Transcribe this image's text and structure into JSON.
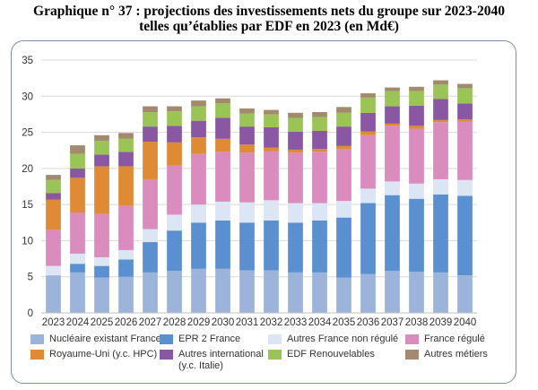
{
  "header": {
    "title_line1": "Graphique n° 37 : projections des investissements nets du groupe sur 2023-2040",
    "title_line2": "telles qu’établies par EDF en 2023 (en Md€)"
  },
  "chart_data": {
    "type": "bar",
    "stacked": true,
    "categories": [
      "2023",
      "2024",
      "2025",
      "2026",
      "2027",
      "2028",
      "2029",
      "2030",
      "2031",
      "2032",
      "2033",
      "2034",
      "2035",
      "2036",
      "2037",
      "2038",
      "2039",
      "2040"
    ],
    "ylim": [
      0,
      35
    ],
    "yticks": [
      0,
      5,
      10,
      15,
      20,
      25,
      30,
      35
    ],
    "grid": true,
    "legend_position": "bottom",
    "series": [
      {
        "name": "Nucléaire existant France",
        "color": "#9db4da",
        "values": [
          5.2,
          5.6,
          4.9,
          5.0,
          5.6,
          5.8,
          6.1,
          6.1,
          5.9,
          5.9,
          5.6,
          5.6,
          4.9,
          5.4,
          5.8,
          5.7,
          5.6,
          5.2
        ]
      },
      {
        "name": "EPR 2 France",
        "color": "#5a8fd0",
        "values": [
          0.0,
          1.2,
          1.6,
          2.4,
          4.2,
          5.6,
          6.4,
          6.7,
          6.6,
          6.9,
          6.9,
          7.2,
          8.3,
          9.8,
          10.5,
          10.1,
          10.8,
          11.0
        ]
      },
      {
        "name": "Autres France non régulé",
        "color": "#dce5f3",
        "values": [
          1.3,
          1.4,
          1.2,
          1.3,
          1.8,
          2.2,
          2.5,
          2.6,
          2.8,
          2.8,
          2.7,
          2.4,
          2.3,
          2.0,
          1.9,
          2.1,
          2.1,
          2.2
        ]
      },
      {
        "name": "France régulé",
        "color": "#d98cbd",
        "values": [
          5.0,
          5.7,
          6.0,
          6.1,
          6.9,
          6.8,
          7.0,
          6.9,
          6.9,
          6.8,
          7.0,
          7.1,
          7.2,
          7.4,
          7.7,
          7.6,
          7.9,
          8.1
        ]
      },
      {
        "name": "Royaume-Uni (y.c. HPC)",
        "color": "#df8b36",
        "values": [
          4.2,
          4.8,
          6.6,
          5.5,
          5.2,
          3.2,
          2.3,
          1.8,
          1.1,
          0.5,
          0.4,
          0.4,
          0.4,
          0.5,
          0.3,
          0.4,
          0.3,
          0.3
        ]
      },
      {
        "name": "Autres international\n(y.c. Italie)",
        "color": "#8a57a3",
        "values": [
          0.9,
          1.3,
          1.6,
          2.0,
          2.1,
          2.3,
          2.3,
          2.9,
          2.5,
          2.8,
          2.5,
          2.5,
          2.7,
          2.6,
          2.4,
          2.8,
          2.9,
          2.2
        ]
      },
      {
        "name": "EDF Renouvelables",
        "color": "#9ac456",
        "values": [
          1.8,
          2.0,
          1.9,
          1.8,
          2.0,
          2.0,
          2.0,
          2.0,
          1.8,
          1.8,
          1.9,
          1.9,
          1.9,
          2.1,
          2.1,
          2.0,
          2.0,
          2.1
        ]
      },
      {
        "name": "Autres métiers",
        "color": "#a28a6e",
        "values": [
          0.7,
          1.2,
          0.8,
          0.8,
          0.8,
          0.7,
          0.8,
          0.7,
          0.7,
          0.6,
          0.7,
          0.7,
          0.8,
          0.6,
          0.5,
          0.6,
          0.6,
          0.6
        ]
      }
    ]
  }
}
